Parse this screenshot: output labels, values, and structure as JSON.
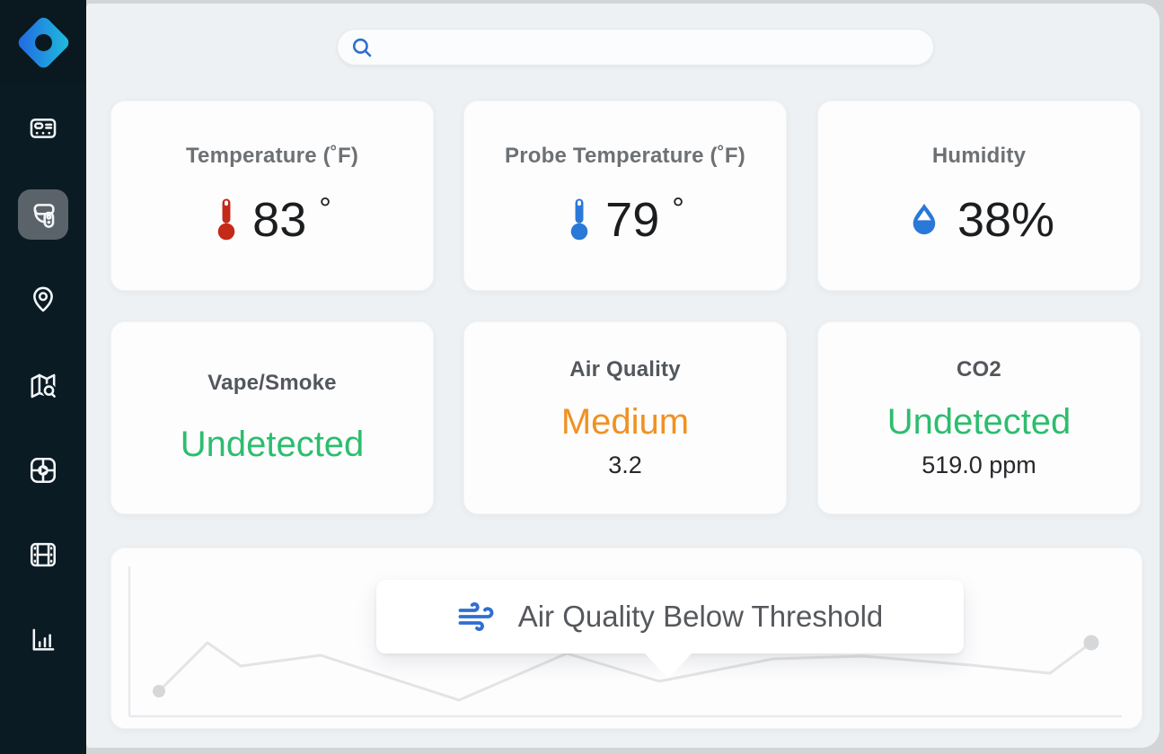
{
  "window": {
    "background": "#d2d4d6",
    "panel_background": "#eef1f3"
  },
  "sidebar": {
    "background": "#0b1b24",
    "active_item_background": "#5b636a",
    "logo": {
      "icon": "diamond-logo-icon",
      "gradient_start": "#2265e2",
      "gradient_end": "#1fc0dc"
    },
    "items": [
      {
        "id": "device-panel",
        "icon": "device-panel-icon",
        "active": false
      },
      {
        "id": "sensor-device",
        "icon": "sensor-device-icon",
        "active": true
      },
      {
        "id": "location",
        "icon": "location-pin-icon",
        "active": false
      },
      {
        "id": "map-search",
        "icon": "map-search-icon",
        "active": false
      },
      {
        "id": "video-wall",
        "icon": "video-grid-play-icon",
        "active": false
      },
      {
        "id": "recordings",
        "icon": "film-strip-icon",
        "active": false
      },
      {
        "id": "analytics",
        "icon": "bar-chart-icon",
        "active": false
      }
    ]
  },
  "search": {
    "icon": "search-icon",
    "icon_color": "#2b6fd3",
    "value": "",
    "placeholder": ""
  },
  "cards": [
    {
      "id": "temperature",
      "title": "Temperature (˚F)",
      "icon": "thermometer-red-icon",
      "icon_color": "#c32a17",
      "value": "83",
      "unit": "°"
    },
    {
      "id": "probe-temperature",
      "title": "Probe Temperature (˚F)",
      "icon": "thermometer-blue-icon",
      "icon_color": "#2a78d8",
      "value": "79",
      "unit": "°"
    },
    {
      "id": "humidity",
      "title": "Humidity",
      "icon": "water-drop-icon",
      "icon_color": "#2a78d8",
      "value": "38%",
      "unit": ""
    },
    {
      "id": "vape-smoke",
      "title": "Vape/Smoke",
      "status": "Undetected",
      "status_color": "#2dbd6e"
    },
    {
      "id": "air-quality",
      "title": "Air Quality",
      "status": "Medium",
      "status_color": "#f19121",
      "detail": "3.2"
    },
    {
      "id": "co2",
      "title": "CO2",
      "status": "Undetected",
      "status_color": "#2dbd6e",
      "detail": "519.0 ppm"
    }
  ],
  "chart": {
    "tooltip": {
      "icon": "wind-icon",
      "label": "Air Quality Below Threshold"
    },
    "line_color": "#e2e4e6",
    "dot_color": "#d5d7d9",
    "axis_color": "#e8eaec",
    "points": [
      [
        53,
        159
      ],
      [
        107,
        105
      ],
      [
        144,
        131
      ],
      [
        233,
        119
      ],
      [
        387,
        169
      ],
      [
        507,
        117
      ],
      [
        610,
        148
      ],
      [
        737,
        123
      ],
      [
        837,
        120
      ],
      [
        957,
        130
      ],
      [
        1045,
        139
      ],
      [
        1091,
        105
      ]
    ]
  }
}
